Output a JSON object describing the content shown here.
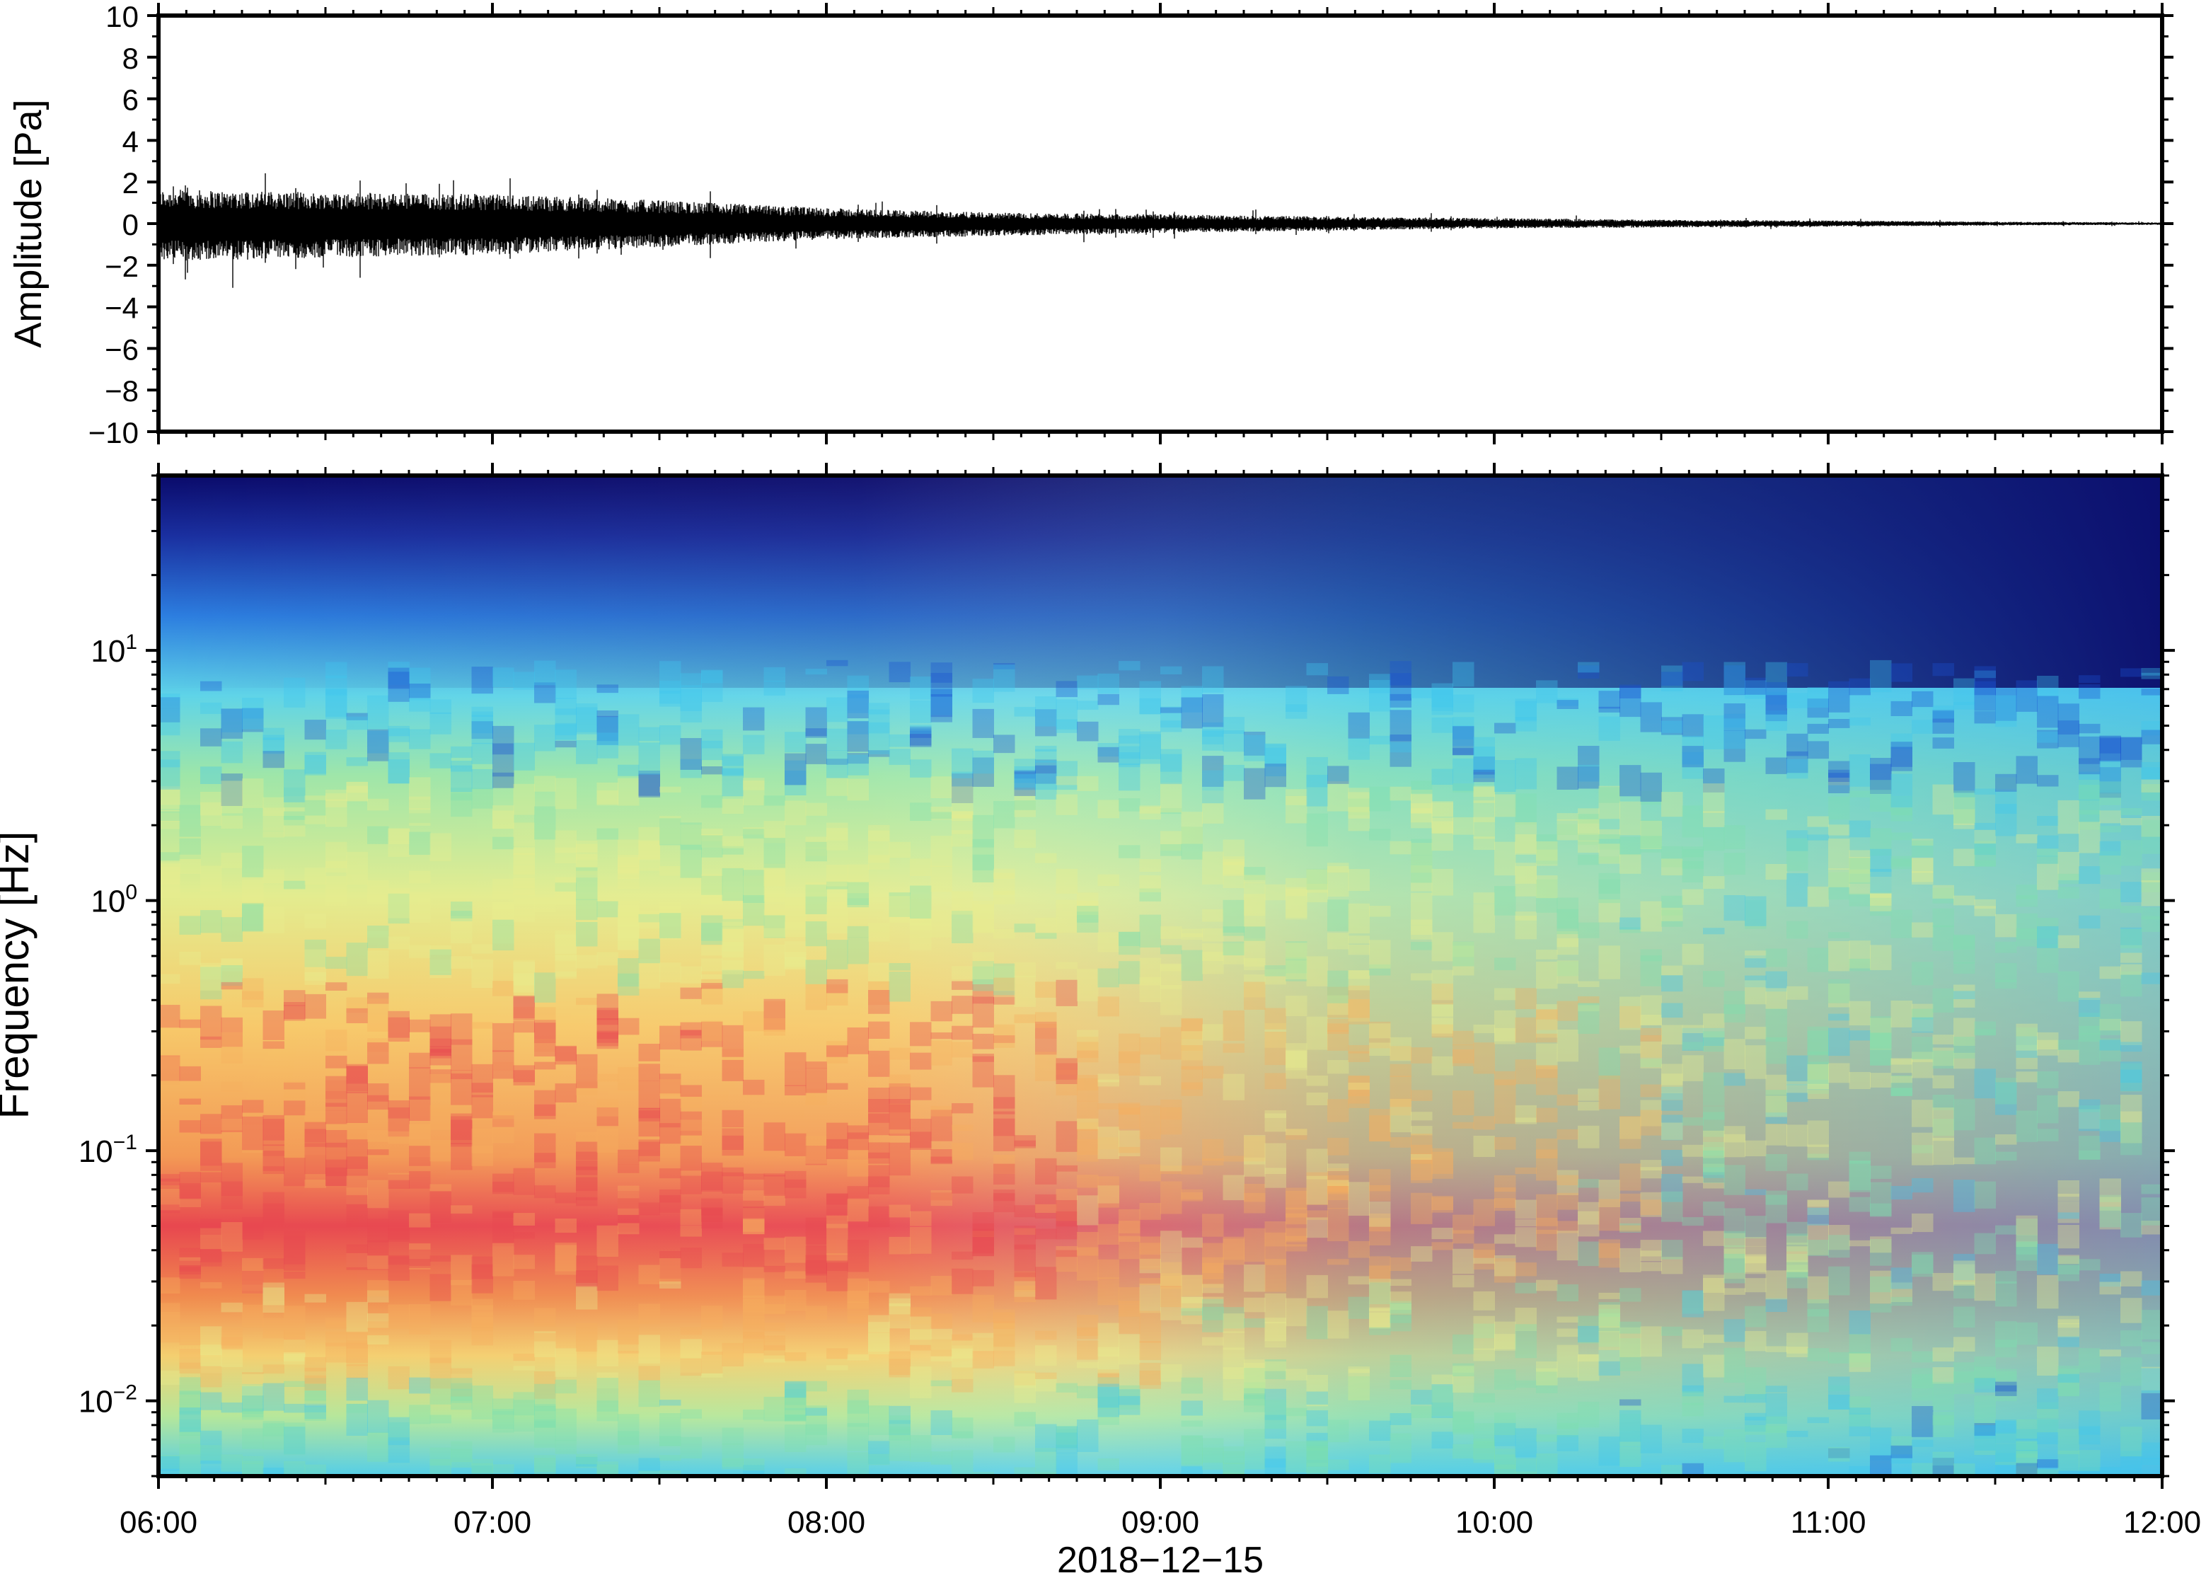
{
  "chart_data": [
    {
      "type": "line",
      "ylabel": "Amplitude [Pa]",
      "ylim": [
        -10,
        10
      ],
      "yticks": [
        "10",
        "8",
        "6",
        "4",
        "2",
        "0",
        "−2",
        "−4",
        "−6",
        "−8",
        "−10"
      ],
      "x_range": [
        "06:00",
        "12:00"
      ],
      "envelope_note": "waveform amplitude envelope decays over time",
      "envelope": [
        {
          "time": "06:00",
          "max": 2.2,
          "min": -2.4
        },
        {
          "time": "06:30",
          "max": 2.0,
          "min": -2.2
        },
        {
          "time": "07:00",
          "max": 1.9,
          "min": -2.0
        },
        {
          "time": "07:30",
          "max": 1.5,
          "min": -1.5
        },
        {
          "time": "08:00",
          "max": 1.0,
          "min": -1.0
        },
        {
          "time": "08:30",
          "max": 0.7,
          "min": -0.8
        },
        {
          "time": "09:00",
          "max": 0.6,
          "min": -0.6
        },
        {
          "time": "09:30",
          "max": 0.45,
          "min": -0.45
        },
        {
          "time": "10:00",
          "max": 0.35,
          "min": -0.3
        },
        {
          "time": "10:30",
          "max": 0.25,
          "min": -0.25
        },
        {
          "time": "11:00",
          "max": 0.2,
          "min": -0.2
        },
        {
          "time": "11:30",
          "max": 0.12,
          "min": -0.12
        },
        {
          "time": "12:00",
          "max": 0.08,
          "min": -0.08
        }
      ],
      "grid": false
    },
    {
      "type": "heatmap",
      "ylabel": "Frequency [Hz]",
      "yscale": "log",
      "ylim": [
        0.005,
        50
      ],
      "yticks": [
        {
          "value": 10,
          "base": "10",
          "exp": "1"
        },
        {
          "value": 1,
          "base": "10",
          "exp": "0"
        },
        {
          "value": 0.1,
          "base": "10",
          "exp": "−1"
        },
        {
          "value": 0.01,
          "base": "10",
          "exp": "−2"
        }
      ],
      "xlabel": "2018−12−15",
      "xticks": [
        "06:00",
        "07:00",
        "08:00",
        "09:00",
        "10:00",
        "11:00",
        "12:00"
      ],
      "colormap": "rainbow",
      "colors": {
        "high": "#e8474f",
        "upper_mid": "#f7b05e",
        "mid": "#e8ee8e",
        "lower_mid": "#7fe0b0",
        "low": "#3fc6ee",
        "lower": "#1a4fd0",
        "lowest": "#0a0a6a"
      },
      "grid": false
    }
  ],
  "axes_color": "#000000"
}
